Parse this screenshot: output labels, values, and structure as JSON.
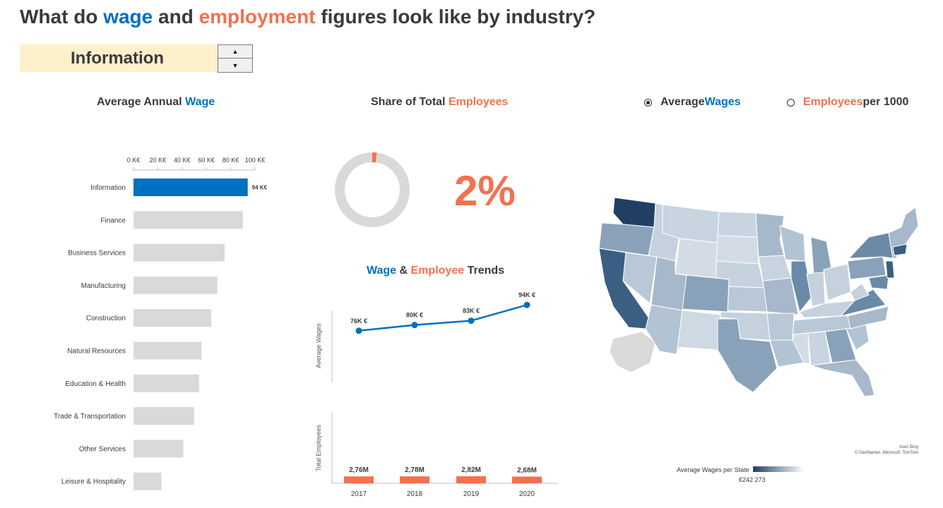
{
  "header": {
    "title_part1": "What do ",
    "title_wage": "wage",
    "title_part2": " and ",
    "title_employment": "employment",
    "title_part3": " figures look like by industry?"
  },
  "selector": {
    "value": "Information",
    "spin_up": "▲",
    "spin_down": "▼"
  },
  "colors": {
    "blue": "#0070c0",
    "orange": "#f4714f",
    "grey": "#d9d9d9",
    "map_dark": "#203f63"
  },
  "wage_panel": {
    "title_part1": "Average Annual ",
    "title_accent": "Wage"
  },
  "share_panel": {
    "title_part1": "Share of Total ",
    "title_accent": "Employees",
    "share_percent": 2,
    "share_label": "2%"
  },
  "trends_panel": {
    "title_wage": "Wage",
    "title_amp": " & ",
    "title_employee": "Employee",
    "title_trends": " Trends"
  },
  "map_panel": {
    "radio_options": [
      {
        "accent": "",
        "word": "Average ",
        "accent2": "Wages",
        "tail": "",
        "checked": true
      },
      {
        "accent": "Employees",
        "word": "",
        "accent2": "",
        "tail": " per 1000",
        "checked": false
      }
    ],
    "credit_line1": "Avec Bing",
    "credit_line2": "© GeoNames, Microsoft, TomTom",
    "legend_label": "Average Wages per State",
    "legend_value": "€242 273"
  },
  "chart_data": [
    {
      "type": "bar",
      "orientation": "horizontal",
      "categories": [
        "Information",
        "Finance",
        "Business Services",
        "Manufacturing",
        "Construction",
        "Natural Resources",
        "Education & Health",
        "Trade & Transportation",
        "Other Services",
        "Leisure & Hospitality"
      ],
      "values": [
        94,
        90,
        75,
        69,
        64,
        56,
        54,
        50,
        41,
        23
      ],
      "highlight_index": 0,
      "data_labels": [
        "94 K€"
      ],
      "x_ticks": [
        "0 K€",
        "20 K€",
        "40 K€",
        "60 K€",
        "80 K€",
        "100 K€"
      ],
      "xlim": [
        0,
        100
      ],
      "grid": false
    },
    {
      "type": "pie",
      "donut": true,
      "slices": [
        {
          "label": "Information",
          "value": 2
        },
        {
          "label": "Other",
          "value": 98
        }
      ]
    },
    {
      "type": "line",
      "x": [
        "2017",
        "2018",
        "2019",
        "2020"
      ],
      "values": [
        76,
        80,
        83,
        94
      ],
      "data_labels": [
        "76K €",
        "80K €",
        "83K €",
        "94K €"
      ],
      "ylabel": "Average Wages"
    },
    {
      "type": "bar",
      "categories": [
        "2017",
        "2018",
        "2019",
        "2020"
      ],
      "values": [
        2.76,
        2.78,
        2.82,
        2.68
      ],
      "data_labels": [
        "2,76M",
        "2,78M",
        "2,82M",
        "2,68M"
      ],
      "ylabel": "Total Employees"
    }
  ]
}
